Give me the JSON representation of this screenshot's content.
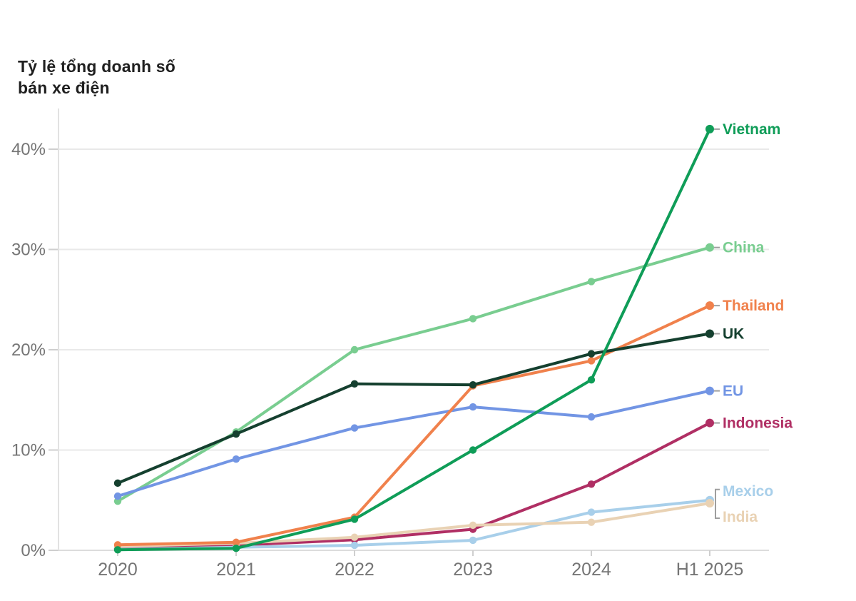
{
  "chart_data": {
    "type": "line",
    "title": "Tỷ lệ tổng doanh số bán xe điện",
    "title_lines": [
      "Tỷ lệ tổng doanh số",
      "bán xe điện"
    ],
    "xlabel": "",
    "ylabel": "Tỷ lệ tổng doanh số bán xe điện",
    "categories": [
      "2020",
      "2021",
      "2022",
      "2023",
      "2024",
      "H1 2025"
    ],
    "yticks": [
      0,
      10,
      20,
      30,
      40
    ],
    "ytick_labels": [
      "0%",
      "10%",
      "20%",
      "30%",
      "40%"
    ],
    "ylim": [
      0,
      44
    ],
    "grid": "horizontal",
    "legend_position": "right-end-labels",
    "series": [
      {
        "name": "Vietnam",
        "color": "#0f9d58",
        "values": [
          0.05,
          0.2,
          3.1,
          10.0,
          17.0,
          42.0
        ]
      },
      {
        "name": "China",
        "color": "#79cd90",
        "values": [
          4.9,
          11.8,
          20.0,
          23.1,
          26.8,
          30.2
        ]
      },
      {
        "name": "Thailand",
        "color": "#f0814c",
        "values": [
          0.55,
          0.8,
          3.3,
          16.4,
          18.9,
          24.4
        ]
      },
      {
        "name": "UK",
        "color": "#15402f",
        "values": [
          6.7,
          11.6,
          16.6,
          16.5,
          19.6,
          21.6
        ]
      },
      {
        "name": "EU",
        "color": "#7295e4",
        "values": [
          5.4,
          9.1,
          12.2,
          14.3,
          13.3,
          15.9
        ]
      },
      {
        "name": "Indonesia",
        "color": "#b02f64",
        "values": [
          0.2,
          0.5,
          1.05,
          2.1,
          6.6,
          12.7
        ]
      },
      {
        "name": "Mexico",
        "color": "#a8cfea",
        "values": [
          0.1,
          0.3,
          0.5,
          1.0,
          3.8,
          5.0
        ]
      },
      {
        "name": "India",
        "color": "#e9d2b4",
        "values": [
          0.4,
          0.7,
          1.3,
          2.5,
          2.8,
          4.7
        ]
      }
    ],
    "colors": {
      "gridline": "#e9e9e9",
      "axis_line": "#e2e2e2",
      "tick": "#cfcfcf",
      "axis_text": "#757575",
      "leader": "#9e9e9e",
      "title_text": "#1f1f1f"
    }
  }
}
